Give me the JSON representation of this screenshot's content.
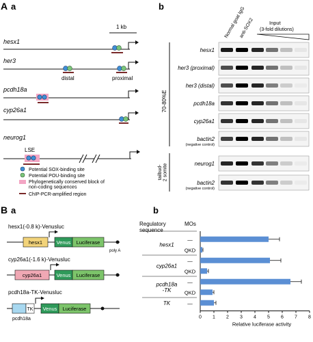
{
  "panel_A": {
    "label": "A",
    "a": {
      "label": "a",
      "scale": "1 kb",
      "genes": [
        "hesx1",
        "her3",
        "pcdh18a",
        "cyp26a1",
        "neurog1"
      ],
      "her3_sites": [
        "distal",
        "proximal"
      ],
      "neurog1_tag": "LSE",
      "legend": [
        "Potential SOX-binding site",
        "Potential POU-binding site",
        "Phylogenetically conserved block of\nnon-coding sequences",
        "ChIP-PCR-amplified region"
      ]
    },
    "b": {
      "label": "b",
      "column_headers": [
        "Normal goat IgG",
        "anti-SOX2"
      ],
      "input_header": "Input",
      "input_sub": "(3-fold dilutions)",
      "stage_1": "70-80%E",
      "stage_2": "tailbud-\n2 somite",
      "rows_1": [
        "hesx1",
        "her3 (proximal)",
        "her3 (distal)",
        "pcdh18a",
        "cyp26a1",
        "bactin2"
      ],
      "row_1_neg": "(negative control)",
      "rows_2": [
        "neurog1",
        "bactin2"
      ],
      "row_2_neg": "(negative control)"
    }
  },
  "panel_B": {
    "label": "B",
    "a": {
      "label": "a",
      "constructs": [
        {
          "title": "hesx1(-0.8 k)-Venusluc",
          "box": "hesx1",
          "venus": "Venus",
          "luc": "Luciferase",
          "tail": "poly A"
        },
        {
          "title": "cyp26a1(-1.6 k)-Venusluc",
          "box": "cyp26a1",
          "venus": "Venus",
          "luc": "Luciferase"
        },
        {
          "title": "pcdh18a-TK-Venusluc",
          "box": "TK",
          "venus": "Venus",
          "luc": "Luciferase",
          "sub": "pcdh18a"
        }
      ]
    },
    "b": {
      "label": "b",
      "col_header_1": "Regulatory\nsequence",
      "col_header_2": "MOs",
      "groups": [
        "hesx1",
        "cyp26a1",
        "pcdh18a\n-TK",
        "TK"
      ],
      "mo_labels": [
        "—",
        "QKD",
        "—",
        "QKD",
        "—",
        "QKD",
        "—"
      ]
    }
  },
  "chart_data": {
    "type": "bar",
    "categories": [
      "hesx1 —",
      "hesx1 QKD",
      "cyp26a1 —",
      "cyp26a1 QKD",
      "pcdh18a-TK —",
      "pcdh18a-TK QKD",
      "TK —"
    ],
    "values": [
      5.0,
      0.15,
      5.1,
      0.5,
      6.6,
      0.9,
      1.0
    ],
    "errors": [
      0.8,
      0.05,
      0.8,
      0.1,
      0.8,
      0.1,
      0.15
    ],
    "xlabel": "Relative luciferase activity",
    "ticks": [
      "0",
      "1",
      "2",
      "3",
      "4",
      "5",
      "6",
      "7",
      "8"
    ],
    "xlim": [
      0,
      8
    ],
    "bar_color": "#5b8fd4"
  }
}
